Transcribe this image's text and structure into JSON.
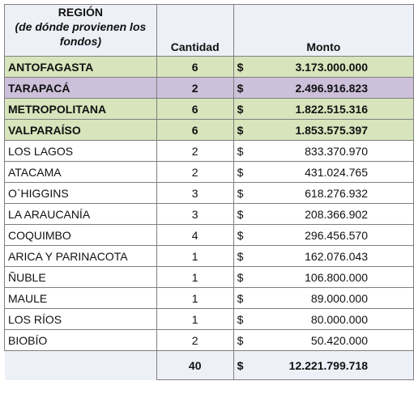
{
  "headers": {
    "region_line1": "REGIÓN",
    "region_line2": "(de dónde provienen los",
    "region_line3": "fondos)",
    "cantidad": "Cantidad",
    "monto": "Monto"
  },
  "currency": "$",
  "rows": [
    {
      "region": "ANTOFAGASTA",
      "cantidad": "6",
      "monto": "3.173.000.000",
      "highlight": "green"
    },
    {
      "region": "TARAPACÁ",
      "cantidad": "2",
      "monto": "2.496.916.823",
      "highlight": "purple"
    },
    {
      "region": "METROPOLITANA",
      "cantidad": "6",
      "monto": "1.822.515.316",
      "highlight": "green"
    },
    {
      "region": "VALPARAÍSO",
      "cantidad": "6",
      "monto": "1.853.575.397",
      "highlight": "green"
    },
    {
      "region": "LOS LAGOS",
      "cantidad": "2",
      "monto": "833.370.970",
      "highlight": "none"
    },
    {
      "region": "ATACAMA",
      "cantidad": "2",
      "monto": "431.024.765",
      "highlight": "none"
    },
    {
      "region": "O`HIGGINS",
      "cantidad": "3",
      "monto": "618.276.932",
      "highlight": "none"
    },
    {
      "region": "LA ARAUCANÍA",
      "cantidad": "3",
      "monto": "208.366.902",
      "highlight": "none"
    },
    {
      "region": "COQUIMBO",
      "cantidad": "4",
      "monto": "296.456.570",
      "highlight": "none"
    },
    {
      "region": "ARICA Y PARINACOTA",
      "cantidad": "1",
      "monto": "162.076.043",
      "highlight": "none"
    },
    {
      "region": "ÑUBLE",
      "cantidad": "1",
      "monto": "106.800.000",
      "highlight": "none"
    },
    {
      "region": "MAULE",
      "cantidad": "1",
      "monto": "89.000.000",
      "highlight": "none"
    },
    {
      "region": "LOS RÍOS",
      "cantidad": "1",
      "monto": "80.000.000",
      "highlight": "none"
    },
    {
      "region": "BIOBÍO",
      "cantidad": "2",
      "monto": "50.420.000",
      "highlight": "none"
    }
  ],
  "total": {
    "cantidad": "40",
    "monto": "12.221.799.718"
  },
  "colors": {
    "green": "#d8e4bc",
    "purple": "#ccc0da",
    "header": "#eef0f8"
  }
}
